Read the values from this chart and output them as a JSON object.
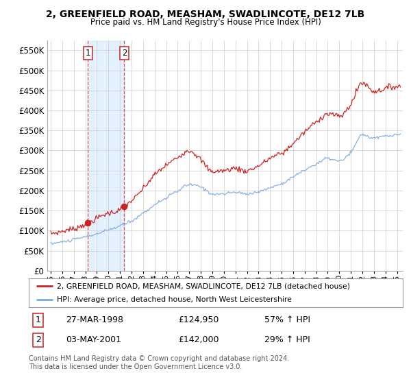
{
  "title": "2, GREENFIELD ROAD, MEASHAM, SWADLINCOTE, DE12 7LB",
  "subtitle": "Price paid vs. HM Land Registry's House Price Index (HPI)",
  "legend_line1": "2, GREENFIELD ROAD, MEASHAM, SWADLINCOTE, DE12 7LB (detached house)",
  "legend_line2": "HPI: Average price, detached house, North West Leicestershire",
  "footnote": "Contains HM Land Registry data © Crown copyright and database right 2024.\nThis data is licensed under the Open Government Licence v3.0.",
  "transactions": [
    {
      "label": "1",
      "date": "27-MAR-1998",
      "price": 124950,
      "pct": "57% ↑ HPI",
      "x_year": 1998.23
    },
    {
      "label": "2",
      "date": "03-MAY-2001",
      "price": 142000,
      "pct": "29% ↑ HPI",
      "x_year": 2001.37
    }
  ],
  "hpi_color": "#7aaadd",
  "price_color": "#cc2222",
  "marker_color": "#cc2222",
  "vline_color": "#cc3333",
  "highlight_fill": "#ddeeff",
  "background_color": "#ffffff",
  "grid_color": "#cccccc",
  "ylim": [
    0,
    575000
  ],
  "xlim_start": 1994.7,
  "xlim_end": 2025.5,
  "ytick_vals": [
    0,
    50000,
    100000,
    150000,
    200000,
    250000,
    300000,
    350000,
    400000,
    450000,
    500000,
    550000
  ],
  "xlabel_years": [
    1995,
    1996,
    1997,
    1998,
    1999,
    2000,
    2001,
    2002,
    2003,
    2004,
    2005,
    2006,
    2007,
    2008,
    2009,
    2010,
    2011,
    2012,
    2013,
    2014,
    2015,
    2016,
    2017,
    2018,
    2019,
    2020,
    2021,
    2022,
    2023,
    2024,
    2025
  ]
}
